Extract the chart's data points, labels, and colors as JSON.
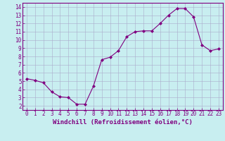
{
  "x": [
    0,
    1,
    2,
    3,
    4,
    5,
    6,
    7,
    8,
    9,
    10,
    11,
    12,
    13,
    14,
    15,
    16,
    17,
    18,
    19,
    20,
    21,
    22,
    23
  ],
  "y": [
    5.3,
    5.1,
    4.8,
    3.7,
    3.1,
    3.0,
    2.2,
    2.2,
    4.4,
    7.6,
    7.9,
    8.7,
    10.4,
    11.0,
    11.1,
    11.1,
    12.0,
    13.0,
    13.8,
    13.8,
    12.8,
    9.4,
    8.7,
    8.9
  ],
  "line_color": "#800080",
  "bg_color": "#c8eef0",
  "grid_color": "#aaaacc",
  "xlabel": "Windchill (Refroidissement éolien,°C)",
  "xlabel_color": "#800080",
  "xlabel_fontsize": 6.5,
  "ylim": [
    1.5,
    14.5
  ],
  "xlim": [
    -0.5,
    23.5
  ],
  "yticks": [
    2,
    3,
    4,
    5,
    6,
    7,
    8,
    9,
    10,
    11,
    12,
    13,
    14
  ],
  "xticks": [
    0,
    1,
    2,
    3,
    4,
    5,
    6,
    7,
    8,
    9,
    10,
    11,
    12,
    13,
    14,
    15,
    16,
    17,
    18,
    19,
    20,
    21,
    22,
    23
  ],
  "tick_fontsize": 5.5,
  "marker": "D",
  "marker_size": 2.0,
  "line_width": 0.8
}
